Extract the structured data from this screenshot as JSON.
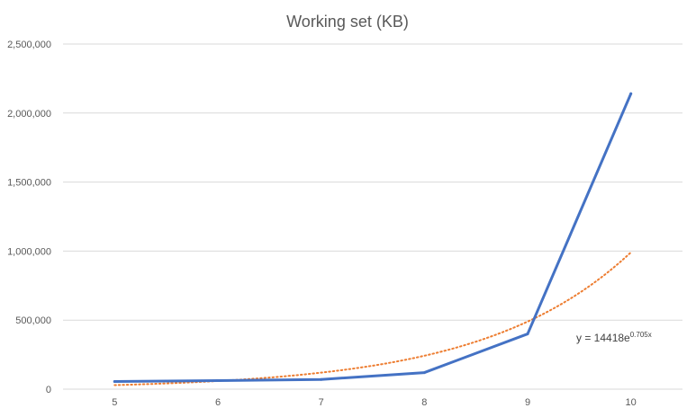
{
  "chart_data": {
    "type": "line",
    "title": "Working set (KB)",
    "xlabel": "",
    "ylabel": "",
    "x": [
      5,
      6,
      7,
      8,
      9,
      10
    ],
    "xticks": [
      "5",
      "6",
      "7",
      "8",
      "9",
      "10"
    ],
    "ylim": [
      0,
      2500000
    ],
    "yticks": [
      0,
      500000,
      1000000,
      1500000,
      2000000,
      2500000
    ],
    "ytick_labels": [
      "0",
      "500,000",
      "1,000,000",
      "1,500,000",
      "2,000,000",
      "2,500,000"
    ],
    "grid": true,
    "legend": "none",
    "series": [
      {
        "values": [
          55000,
          62000,
          70000,
          120000,
          400000,
          2140000
        ],
        "color": "#4472C4",
        "style": "solid"
      }
    ],
    "trendline": {
      "kind": "exponential",
      "a": 14418,
      "b": 0.705,
      "color": "#ED7D31",
      "style": "dotted",
      "equation_prefix": "y = 14418e",
      "equation_exponent": "0.705x"
    }
  }
}
